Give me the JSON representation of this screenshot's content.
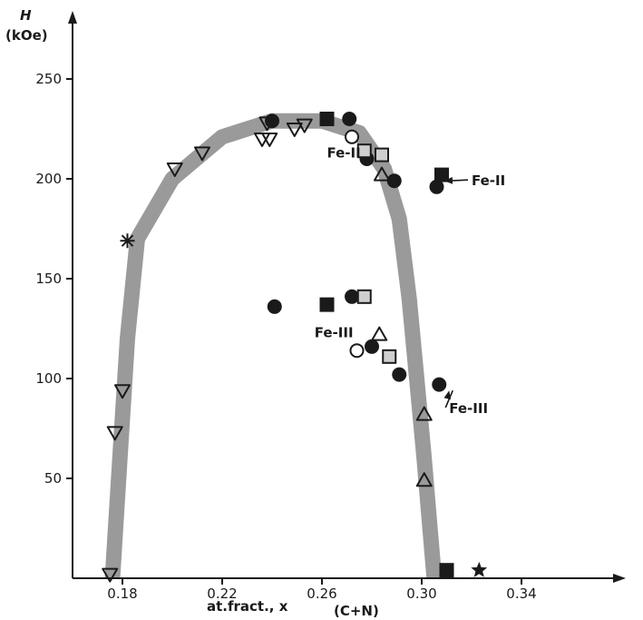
{
  "chart_data": {
    "type": "scatter",
    "title": "",
    "ylabel_lines": [
      "H",
      "(kOe)"
    ],
    "xlabel": "at.fract., x",
    "xlabel_sub": "(C+N)",
    "xlim": [
      0.16,
      0.355
    ],
    "ylim": [
      0,
      265
    ],
    "xticks": [
      {
        "value": 0.18,
        "label": "0.18"
      },
      {
        "value": 0.22,
        "label": "0.22"
      },
      {
        "value": 0.26,
        "label": "0.26"
      },
      {
        "value": 0.3,
        "label": "0.30"
      },
      {
        "value": 0.34,
        "label": "0.34"
      }
    ],
    "yticks": [
      {
        "value": 50,
        "label": "50"
      },
      {
        "value": 100,
        "label": "100"
      },
      {
        "value": 150,
        "label": "150"
      },
      {
        "value": 200,
        "label": "200"
      },
      {
        "value": 250,
        "label": "250"
      }
    ],
    "grid": false,
    "colors": {
      "band": "#9a9a9a",
      "ink": "#1a1a1a",
      "hollow_fill": "#ffffff",
      "light_fill": "#cfcfcf"
    },
    "band": {
      "x": [
        0.176,
        0.179,
        0.182,
        0.186,
        0.2,
        0.22,
        0.24,
        0.26,
        0.275,
        0.285,
        0.291,
        0.295,
        0.298,
        0.301,
        0.303,
        0.305
      ],
      "y": [
        0,
        60,
        120,
        170,
        200,
        221,
        229,
        229,
        223,
        205,
        180,
        140,
        100,
        60,
        30,
        0
      ]
    },
    "series": [
      {
        "marker": "triangle-down",
        "fill": "none",
        "points": [
          {
            "x": 0.175,
            "y": 2
          },
          {
            "x": 0.177,
            "y": 73
          },
          {
            "x": 0.18,
            "y": 94
          },
          {
            "x": 0.201,
            "y": 205
          },
          {
            "x": 0.212,
            "y": 213
          },
          {
            "x": 0.236,
            "y": 220
          },
          {
            "x": 0.239,
            "y": 220
          },
          {
            "x": 0.238,
            "y": 228
          },
          {
            "x": 0.249,
            "y": 225
          },
          {
            "x": 0.253,
            "y": 227
          }
        ]
      },
      {
        "marker": "asterisk",
        "fill": "none",
        "points": [
          {
            "x": 0.182,
            "y": 169
          }
        ]
      },
      {
        "marker": "circle",
        "fill": "solid",
        "points": [
          {
            "x": 0.24,
            "y": 229
          },
          {
            "x": 0.271,
            "y": 230
          },
          {
            "x": 0.278,
            "y": 210
          },
          {
            "x": 0.289,
            "y": 199
          },
          {
            "x": 0.306,
            "y": 196
          },
          {
            "x": 0.241,
            "y": 136
          },
          {
            "x": 0.272,
            "y": 141
          },
          {
            "x": 0.28,
            "y": 116
          },
          {
            "x": 0.291,
            "y": 102
          },
          {
            "x": 0.307,
            "y": 97
          }
        ]
      },
      {
        "marker": "square",
        "fill": "solid",
        "points": [
          {
            "x": 0.262,
            "y": 230
          },
          {
            "x": 0.308,
            "y": 202
          },
          {
            "x": 0.262,
            "y": 137
          },
          {
            "x": 0.31,
            "y": 4
          }
        ]
      },
      {
        "marker": "circle",
        "fill": "none",
        "points": [
          {
            "x": 0.272,
            "y": 221
          },
          {
            "x": 0.274,
            "y": 114
          }
        ]
      },
      {
        "marker": "square",
        "fill": "none",
        "points": [
          {
            "x": 0.277,
            "y": 214
          },
          {
            "x": 0.284,
            "y": 212
          },
          {
            "x": 0.277,
            "y": 141
          },
          {
            "x": 0.287,
            "y": 111
          }
        ]
      },
      {
        "marker": "triangle-up",
        "fill": "none",
        "points": [
          {
            "x": 0.284,
            "y": 202
          },
          {
            "x": 0.283,
            "y": 122
          },
          {
            "x": 0.301,
            "y": 82
          },
          {
            "x": 0.301,
            "y": 49
          }
        ]
      },
      {
        "marker": "star",
        "fill": "solid",
        "points": [
          {
            "x": 0.323,
            "y": 4
          }
        ]
      }
    ],
    "annotations": [
      {
        "id": "fe2-left",
        "text": "Fe-II",
        "x": 0.262,
        "y": 213
      },
      {
        "id": "fe2-right",
        "text": "Fe-II",
        "x": 0.32,
        "y": 199,
        "arrow_to": {
          "x": 0.309,
          "y": 199
        }
      },
      {
        "id": "fe3-left",
        "text": "Fe-III",
        "x": 0.257,
        "y": 123
      },
      {
        "id": "fe3-right",
        "text": "Fe-III",
        "x": 0.311,
        "y": 85,
        "arrow_to": {
          "x": 0.311,
          "y": 94
        }
      }
    ]
  }
}
